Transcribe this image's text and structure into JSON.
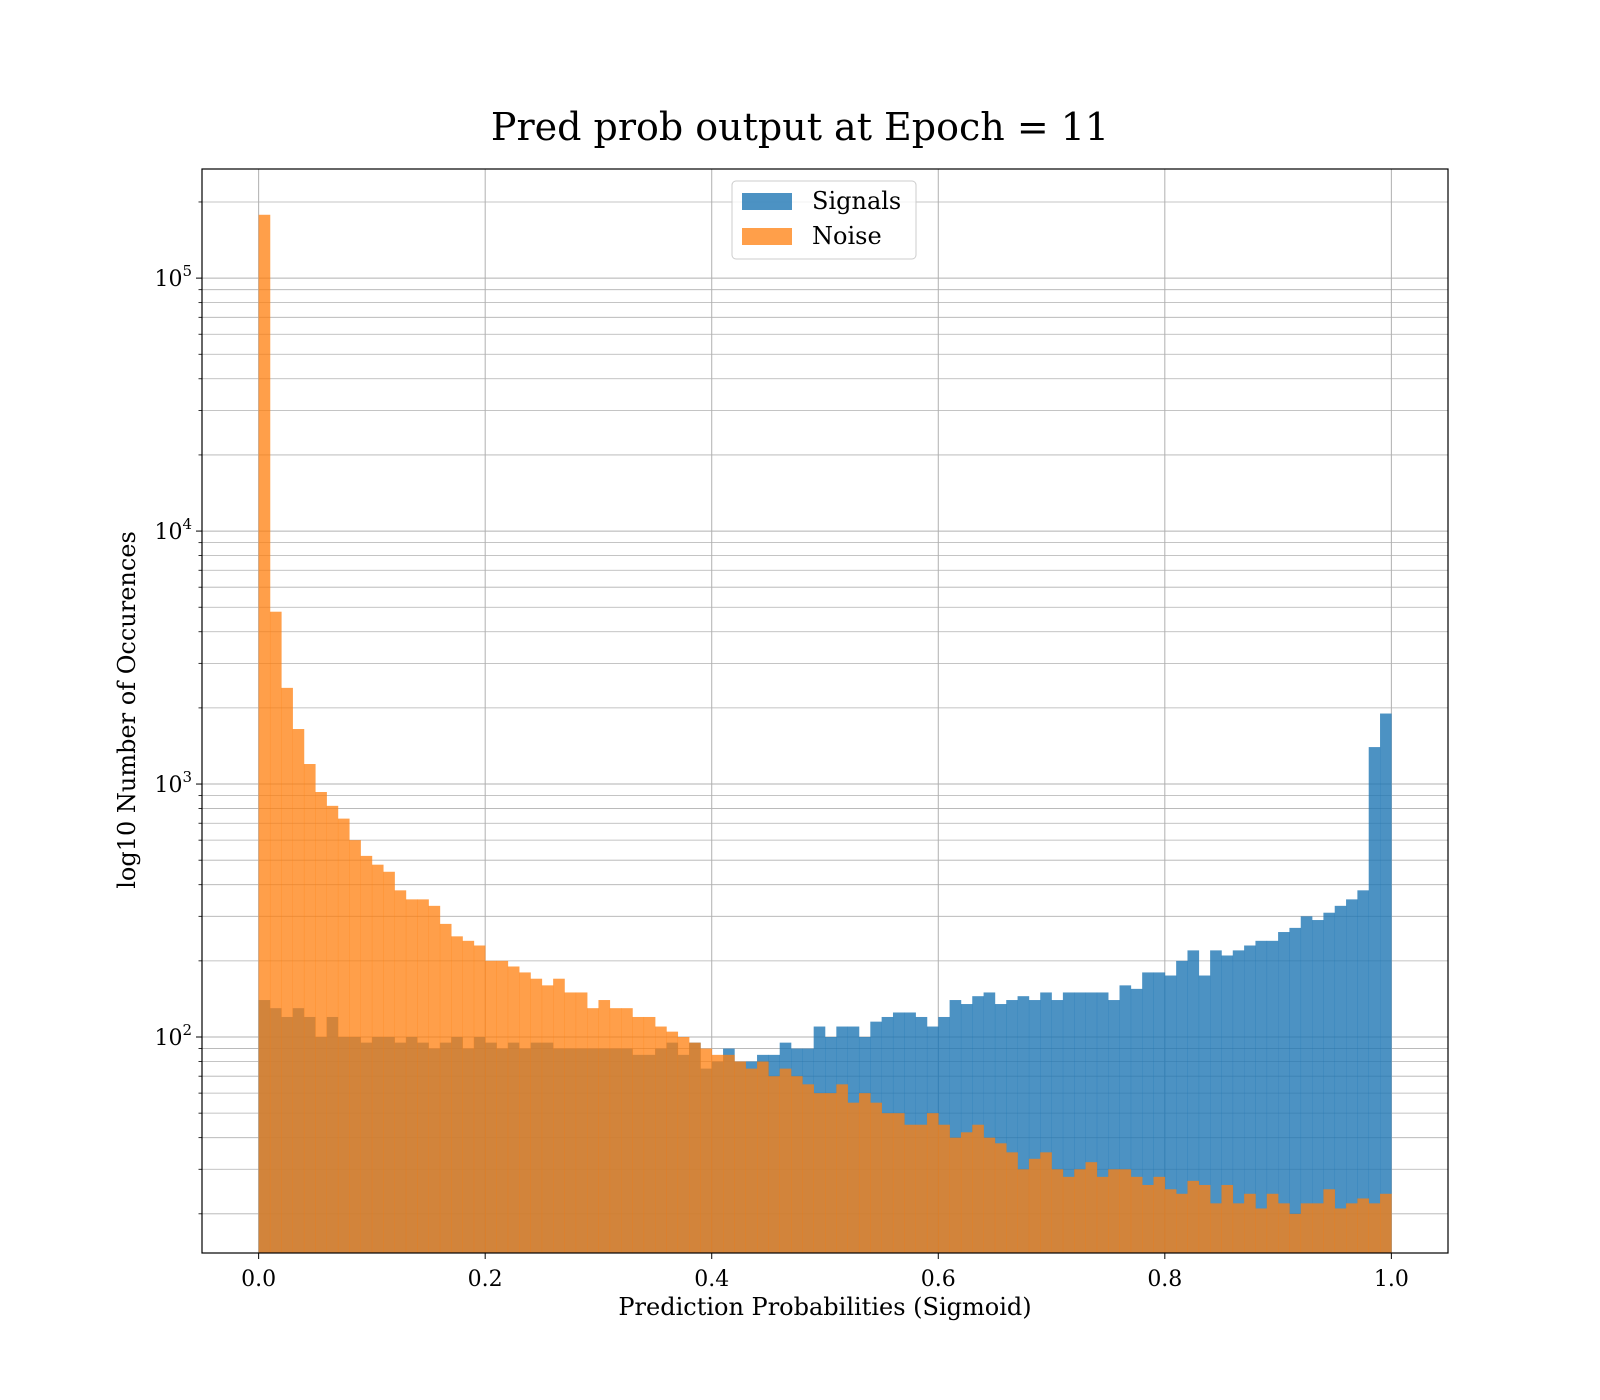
{
  "chart_data": {
    "type": "bar",
    "title": "Pred prob output at Epoch = 11",
    "xlabel": "Prediction Probabilities (Sigmoid)",
    "ylabel": "log10 Number of Occurences",
    "x_scale": "linear",
    "y_scale": "log",
    "xlim": [
      -0.05,
      1.05
    ],
    "ylim": [
      14,
      270000
    ],
    "x_ticks": [
      0.0,
      0.2,
      0.4,
      0.6,
      0.8,
      1.0
    ],
    "x_tick_labels": [
      "0.0",
      "0.2",
      "0.4",
      "0.6",
      "0.8",
      "1.0"
    ],
    "y_ticks": [
      100,
      1000,
      10000,
      100000
    ],
    "y_tick_labels": [
      {
        "base": "10",
        "exp": "2"
      },
      {
        "base": "10",
        "exp": "3"
      },
      {
        "base": "10",
        "exp": "4"
      },
      {
        "base": "10",
        "exp": "5"
      }
    ],
    "grid": true,
    "legend_position": "upper center",
    "bins": {
      "start": 0.0,
      "end": 1.0,
      "count": 100
    },
    "series": [
      {
        "name": "Signals",
        "color": "#1f77b4",
        "opacity": 0.8,
        "values": [
          140,
          130,
          120,
          130,
          120,
          100,
          120,
          100,
          100,
          95,
          100,
          100,
          95,
          100,
          95,
          90,
          95,
          100,
          90,
          100,
          95,
          90,
          95,
          90,
          95,
          95,
          90,
          90,
          90,
          90,
          90,
          90,
          90,
          85,
          85,
          90,
          95,
          85,
          95,
          75,
          80,
          90,
          80,
          80,
          85,
          85,
          95,
          90,
          90,
          110,
          100,
          110,
          110,
          100,
          115,
          120,
          125,
          125,
          120,
          110,
          120,
          140,
          135,
          145,
          150,
          135,
          140,
          145,
          140,
          150,
          140,
          150,
          150,
          150,
          150,
          140,
          160,
          155,
          180,
          180,
          175,
          200,
          220,
          175,
          220,
          210,
          220,
          230,
          240,
          240,
          260,
          270,
          300,
          290,
          310,
          330,
          350,
          380,
          1400,
          1900
        ]
      },
      {
        "name": "Noise",
        "color": "#ff7f0e",
        "opacity": 0.75,
        "values": [
          178000,
          4800,
          2400,
          1650,
          1200,
          930,
          820,
          730,
          600,
          520,
          480,
          450,
          380,
          350,
          350,
          330,
          280,
          250,
          240,
          230,
          200,
          200,
          190,
          180,
          170,
          160,
          170,
          150,
          150,
          130,
          140,
          130,
          130,
          120,
          120,
          110,
          105,
          100,
          95,
          90,
          85,
          85,
          80,
          75,
          80,
          70,
          75,
          70,
          65,
          60,
          60,
          65,
          55,
          60,
          55,
          50,
          50,
          45,
          45,
          50,
          45,
          40,
          42,
          45,
          40,
          38,
          35,
          30,
          33,
          35,
          30,
          28,
          30,
          32,
          28,
          30,
          30,
          28,
          26,
          28,
          25,
          24,
          27,
          26,
          22,
          26,
          22,
          24,
          21,
          24,
          22,
          20,
          22,
          22,
          25,
          21,
          22,
          23,
          22,
          24
        ]
      }
    ]
  }
}
